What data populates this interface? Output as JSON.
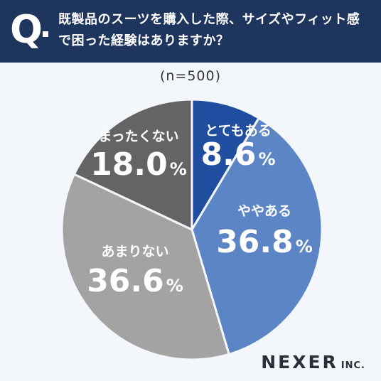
{
  "header": {
    "q_mark": "Q",
    "question": "既製品のスーツを購入した際、サイズやフィット感で困った経験はありますか？",
    "background": "#1e355d"
  },
  "sample_label": "(n=500)",
  "brand": {
    "main": "NEXER",
    "sub": "INC."
  },
  "chart_data": {
    "type": "pie",
    "slices": [
      {
        "label": "とてもある",
        "value": 8.6,
        "display": "8.6",
        "color": "#1f4ea1"
      },
      {
        "label": "ややある",
        "value": 36.8,
        "display": "36.8",
        "color": "#5b85c4"
      },
      {
        "label": "あまりない",
        "value": 36.6,
        "display": "36.6",
        "color": "#a3a3a3"
      },
      {
        "label": "まったくない",
        "value": 18.0,
        "display": "18.0",
        "color": "#646464"
      }
    ],
    "unit": "%"
  }
}
